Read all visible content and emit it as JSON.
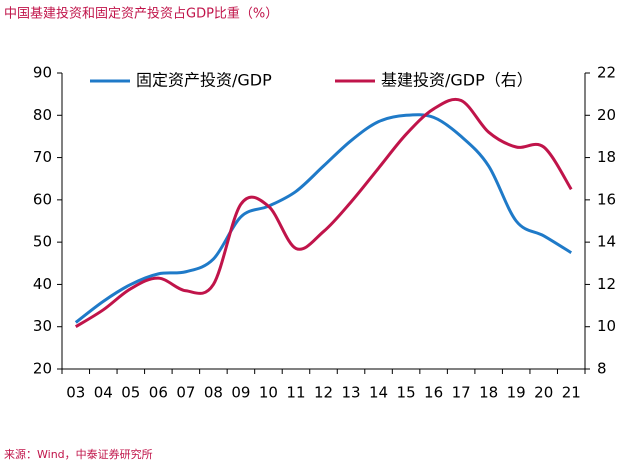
{
  "chart_data": {
    "type": "line",
    "title": "中国基建投资和固定资产投资占GDP比重（%）",
    "source": "来源：Wind，中泰证券研究所",
    "categories": [
      "03",
      "04",
      "05",
      "06",
      "07",
      "08",
      "09",
      "10",
      "11",
      "12",
      "13",
      "14",
      "15",
      "16",
      "17",
      "18",
      "19",
      "20",
      "21"
    ],
    "series": [
      {
        "name": "固定资产投资/GDP",
        "color": "#1f7ac8",
        "axis": "y",
        "values": [
          31,
          36,
          40,
          42.5,
          43,
          46,
          56,
          58.5,
          62,
          68,
          74,
          78.5,
          80,
          79.5,
          75,
          68,
          55,
          51.5,
          47.5
        ]
      },
      {
        "name": "基建投资/GDP（右）",
        "color": "#c0144a",
        "axis": "y2",
        "values": [
          10,
          10.8,
          11.8,
          12.3,
          11.7,
          12.0,
          15.8,
          15.7,
          13.7,
          14.5,
          15.9,
          17.5,
          19.1,
          20.3,
          20.7,
          19.2,
          18.5,
          18.5,
          16.5
        ]
      }
    ],
    "ylim": [
      20,
      90
    ],
    "yticks": [
      20,
      30,
      40,
      50,
      60,
      70,
      80,
      90
    ],
    "y2lim": [
      8,
      22
    ],
    "y2ticks": [
      8,
      10,
      12,
      14,
      16,
      18,
      20,
      22
    ],
    "grid": false
  }
}
